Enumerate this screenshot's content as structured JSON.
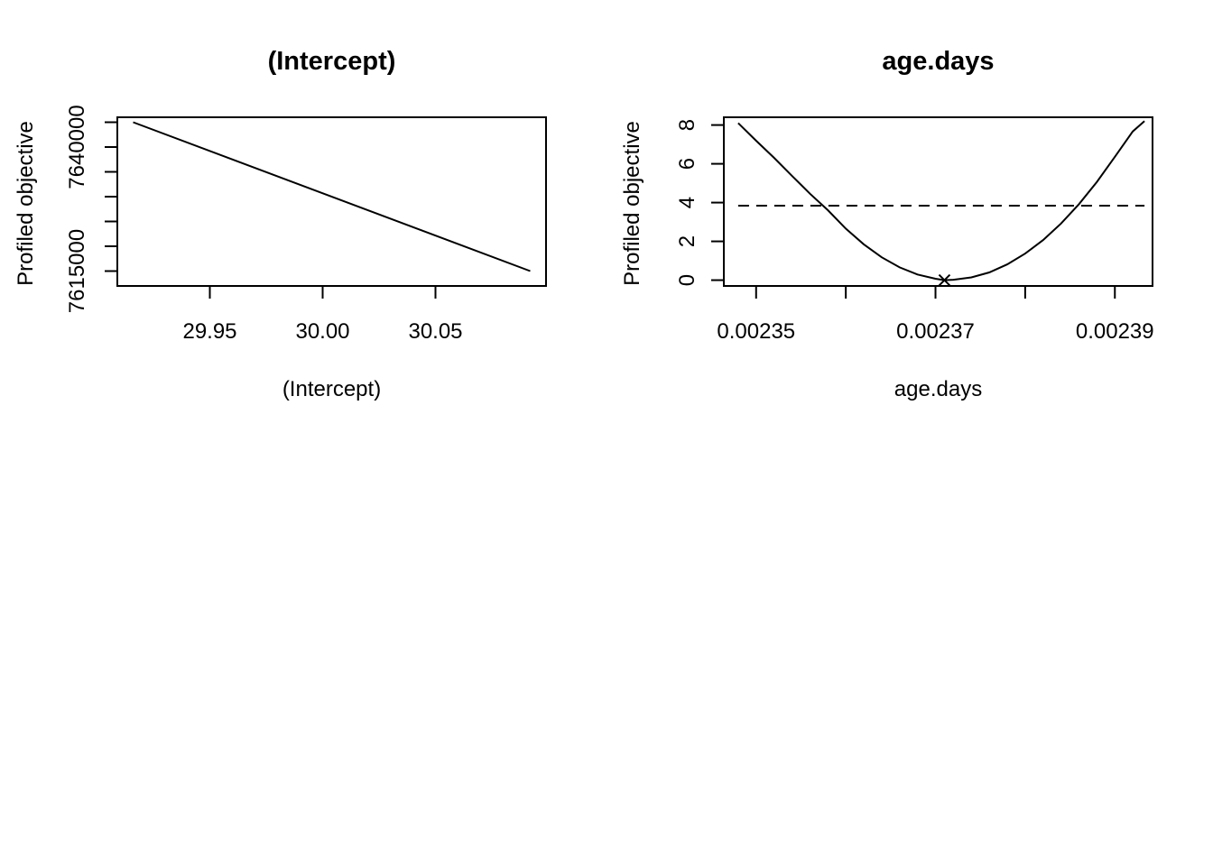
{
  "chart_data": [
    {
      "type": "line",
      "title": "(Intercept)",
      "xlabel": "(Intercept)",
      "ylabel": "Profiled objective",
      "xlim": [
        29.909,
        30.099
      ],
      "ylim": [
        7612000,
        7646000
      ],
      "x_ticks": [
        29.95,
        30.0,
        30.05
      ],
      "x_tick_labels": [
        "29.95",
        "30.00",
        "30.05"
      ],
      "y_ticks": [
        7615000,
        7620000,
        7625000,
        7630000,
        7635000,
        7640000,
        7645000
      ],
      "y_tick_labels": [
        "7615000",
        "",
        "",
        "",
        "",
        "7640000",
        ""
      ],
      "grid": false,
      "series": [
        {
          "style": "solid",
          "x": [
            29.916,
            30.092
          ],
          "y": [
            7645000,
            7615000
          ]
        }
      ]
    },
    {
      "type": "line",
      "title": "age.days",
      "xlabel": "age.days",
      "ylabel": "Profiled objective",
      "xlim": [
        0.0023464,
        0.0023942
      ],
      "ylim": [
        -0.3,
        8.4
      ],
      "x_ticks": [
        0.00235,
        0.00236,
        0.00237,
        0.00238,
        0.00239
      ],
      "x_tick_labels": [
        "0.00235",
        "",
        "0.00237",
        "",
        "0.00239"
      ],
      "y_ticks": [
        0,
        2,
        4,
        6,
        8
      ],
      "y_tick_labels": [
        "0",
        "2",
        "4",
        "6",
        "8"
      ],
      "grid": false,
      "series": [
        {
          "style": "solid",
          "x": [
            0.002348,
            0.00235,
            0.002352,
            0.002354,
            0.002356,
            0.002358,
            0.00236,
            0.002362,
            0.002364,
            0.002366,
            0.002368,
            0.00237,
            0.002371,
            0.002372,
            0.002374,
            0.002376,
            0.002378,
            0.00238,
            0.002382,
            0.002384,
            0.002386,
            0.002388,
            0.00239,
            0.002392,
            0.0023933
          ],
          "y": [
            8.1,
            7.19,
            6.31,
            5.38,
            4.46,
            3.61,
            2.66,
            1.85,
            1.18,
            0.66,
            0.29,
            0.07,
            0.0,
            0.02,
            0.14,
            0.4,
            0.81,
            1.37,
            2.07,
            2.92,
            3.92,
            5.07,
            6.36,
            7.67,
            8.2
          ]
        },
        {
          "style": "dashed",
          "x": [
            0.002348,
            0.0023933
          ],
          "y": [
            3.84,
            3.84
          ]
        }
      ],
      "markers": [
        {
          "symbol": "x",
          "x": 0.002371,
          "y": 0.0
        }
      ]
    }
  ]
}
